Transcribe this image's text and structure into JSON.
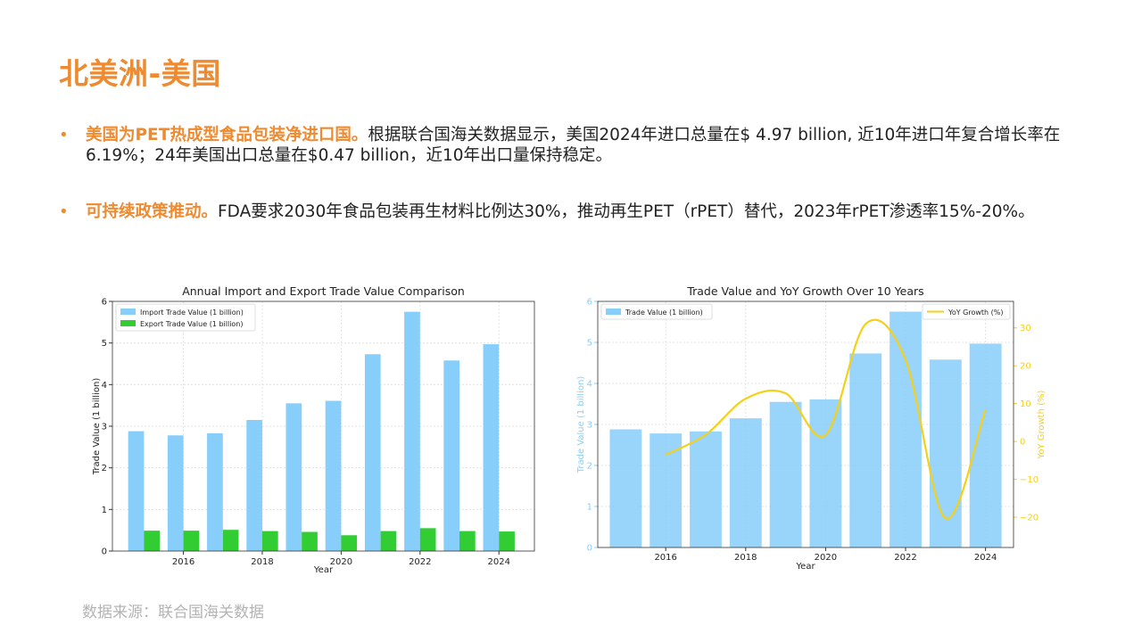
{
  "page": {
    "title": "北美洲-美国",
    "bullets": [
      {
        "lead": "美国为PET热成型食品包装净进口国。",
        "body": "根据联合国海关数据显示，美国2024年进口总量在$ 4.97 billion, 近10年进口年复合增长率在6.19%；24年美国出口总量在$0.47 billion，近10年出口量保持稳定。"
      },
      {
        "lead": "可持续政策推动。",
        "body": "FDA要求2030年食品包装再生材料比例达30%，推动再生PET（rPET）替代，2023年rPET渗透率15%-20%。"
      }
    ],
    "source": "数据来源：联合国海关数据"
  },
  "chart_data": [
    {
      "type": "bar",
      "title": "Annual Import and Export Trade Value Comparison",
      "xlabel": "Year",
      "ylabel": "Trade Value (1 billion)",
      "x": [
        2015,
        2016,
        2017,
        2018,
        2019,
        2020,
        2021,
        2022,
        2023,
        2024
      ],
      "x_ticks": [
        2016,
        2018,
        2020,
        2022,
        2024
      ],
      "ylim": [
        0,
        6
      ],
      "y_ticks": [
        0,
        1,
        2,
        3,
        4,
        5,
        6
      ],
      "grid": true,
      "legend": "top-left",
      "series": [
        {
          "name": "Import Trade Value (1 billion)",
          "color": "#87cefa",
          "values": [
            2.88,
            2.78,
            2.83,
            3.15,
            3.55,
            3.61,
            4.73,
            5.75,
            4.58,
            4.97
          ]
        },
        {
          "name": "Export Trade Value (1 billion)",
          "color": "#32cd32",
          "values": [
            0.49,
            0.49,
            0.51,
            0.48,
            0.46,
            0.38,
            0.48,
            0.55,
            0.48,
            0.47
          ]
        }
      ]
    },
    {
      "type": "bar+line",
      "title": "Trade Value and YoY Growth Over 10 Years",
      "xlabel": "Year",
      "x": [
        2015,
        2016,
        2017,
        2018,
        2019,
        2020,
        2021,
        2022,
        2023,
        2024
      ],
      "x_ticks": [
        2016,
        2018,
        2020,
        2022,
        2024
      ],
      "grid": true,
      "bars": {
        "name": "Trade Value (1 billion)",
        "color": "#87cefa",
        "axis": "left",
        "ylabel": "Trade Value (1 billion)",
        "ylim": [
          0,
          6
        ],
        "y_ticks": [
          0,
          1,
          2,
          3,
          4,
          5,
          6
        ],
        "legend": "top-left",
        "values": [
          2.88,
          2.78,
          2.83,
          3.15,
          3.55,
          3.61,
          4.73,
          5.75,
          4.58,
          4.97
        ]
      },
      "line": {
        "name": "YoY Growth (%)",
        "color": "#f5d019",
        "axis": "right",
        "ylabel": "YoY Growth (%)",
        "ylim": [
          -28,
          37
        ],
        "y_ticks": [
          -20,
          -10,
          0,
          10,
          20,
          30
        ],
        "legend": "top-right",
        "x": [
          2016,
          2017,
          2018,
          2019,
          2020,
          2021,
          2022,
          2023,
          2024
        ],
        "values": [
          -3.5,
          1.8,
          11.3,
          12.7,
          1.7,
          31.0,
          21.6,
          -20.3,
          8.5
        ]
      }
    }
  ]
}
